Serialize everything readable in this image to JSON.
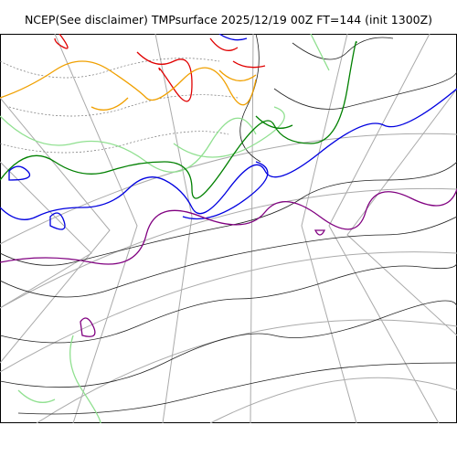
{
  "figure": {
    "title": "NCEP(See disclaimer) TMPsurface 2025/12/19 00Z FT=144 (init 1300Z)"
  },
  "map": {
    "projection": "polar stereographic",
    "graticule_color": "#aaaaaa",
    "coastline_color": "#000000",
    "contour_colors": {
      "red": "#e00000",
      "orange": "#f0a000",
      "dark_green": "#008000",
      "light_green": "#90e090",
      "blue": "#0000e0",
      "purple": "#800080",
      "gray": "#444444"
    }
  }
}
